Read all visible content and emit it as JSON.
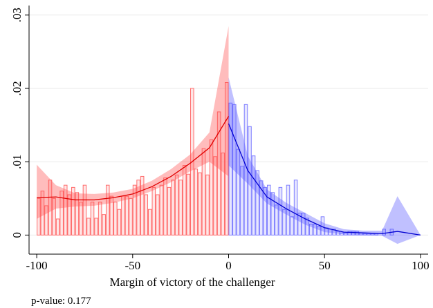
{
  "chart_data": {
    "type": "density",
    "xlabel": "Margin of victory of the challenger",
    "note": "p-value: 0.177",
    "xlim": [
      -104,
      104
    ],
    "ylim": [
      -0.0026,
      0.0313
    ],
    "xticks": [
      -100,
      -50,
      0,
      50,
      100
    ],
    "yticks": [
      {
        "value": 0,
        "label": "0"
      },
      {
        "value": 0.01,
        "label": ".01"
      },
      {
        "value": 0.02,
        "label": ".02"
      },
      {
        "value": 0.03,
        "label": ".03"
      }
    ],
    "grid": true,
    "histograms": [
      {
        "color": "#ff6b6b",
        "fill": "#ffd6d6",
        "bins": [
          -100,
          -98,
          -96,
          -94,
          -92,
          -90,
          -88,
          -86,
          -84,
          -82,
          -80,
          -78,
          -76,
          -74,
          -72,
          -70,
          -68,
          -66,
          -64,
          -62,
          -60,
          -58,
          -56,
          -54,
          -52,
          -50,
          -48,
          -46,
          -44,
          -42,
          -40,
          -38,
          -36,
          -34,
          -32,
          -30,
          -28,
          -26,
          -24,
          -22,
          -20,
          -18,
          -16,
          -14,
          -12,
          -10,
          -8,
          -6,
          -4,
          -2,
          0
        ],
        "values": [
          0.005,
          0.006,
          0.004,
          0.0075,
          0.005,
          0.0022,
          0.006,
          0.0068,
          0.0055,
          0.0065,
          0.0058,
          0.0045,
          0.0068,
          0.0023,
          0.0045,
          0.0023,
          0.0045,
          0.0028,
          0.0068,
          0.0053,
          0.0045,
          0.0035,
          0.0053,
          0.0053,
          0.005,
          0.0068,
          0.0075,
          0.008,
          0.0055,
          0.0035,
          0.0065,
          0.0055,
          0.0068,
          0.0078,
          0.0065,
          0.0075,
          0.0082,
          0.0075,
          0.0095,
          0.0083,
          0.02,
          0.009,
          0.0085,
          0.0118,
          0.0082,
          0.013,
          0.0107,
          0.0168,
          0.0112,
          0.0208
        ]
      },
      {
        "color": "#7f7fff",
        "fill": "#d6d6ff",
        "bins": [
          0,
          2,
          4,
          6,
          8,
          10,
          12,
          14,
          16,
          18,
          20,
          22,
          24,
          26,
          28,
          30,
          32,
          34,
          36,
          38,
          40,
          42,
          44,
          46,
          48,
          50,
          52,
          54,
          56,
          58,
          60,
          62,
          64,
          66,
          68,
          70,
          72,
          74,
          76,
          78,
          80,
          82,
          84,
          86,
          88,
          90,
          92,
          94,
          96,
          98,
          100
        ],
        "values": [
          0.018,
          0.0178,
          0.0117,
          0.0094,
          0.0178,
          0.0148,
          0.0108,
          0.0088,
          0.0074,
          0.0065,
          0.0068,
          0.0058,
          0.0041,
          0.0065,
          0.0035,
          0.0068,
          0.0025,
          0.0075,
          0.003,
          0.003,
          0.0023,
          0.0015,
          0.0015,
          0.0012,
          0.0025,
          0.001,
          0.0008,
          0.0008,
          0.0005,
          0.0003,
          0.0003,
          0.0005,
          0.0005,
          0.0005,
          0.0003,
          0.0002,
          0.0002,
          0.0002,
          0.0002,
          0,
          0.0008,
          0,
          0.0008,
          0,
          0,
          0,
          0,
          0,
          0,
          0
        ]
      }
    ],
    "fits": [
      {
        "color": "#e00000",
        "band": "rgba(255,80,80,0.38)",
        "x": [
          -100,
          -90,
          -80,
          -70,
          -60,
          -50,
          -40,
          -30,
          -20,
          -10,
          0
        ],
        "values": [
          0.0051,
          0.0052,
          0.0048,
          0.0048,
          0.0051,
          0.0056,
          0.0066,
          0.008,
          0.0098,
          0.0119,
          0.0162
        ],
        "lower": [
          0.0022,
          0.0036,
          0.0039,
          0.004,
          0.0044,
          0.005,
          0.006,
          0.0072,
          0.0087,
          0.01,
          0.008
        ],
        "upper": [
          0.0096,
          0.0068,
          0.0057,
          0.0056,
          0.0058,
          0.0063,
          0.0074,
          0.009,
          0.011,
          0.014,
          0.0285
        ]
      },
      {
        "color": "#0000d0",
        "band": "rgba(90,90,255,0.38)",
        "x": [
          0,
          10,
          20,
          30,
          40,
          50,
          60,
          70,
          80,
          88,
          100
        ],
        "values": [
          0.0152,
          0.0088,
          0.0052,
          0.0036,
          0.0022,
          0.001,
          0.0004,
          0.0003,
          0.0002,
          0.0005,
          0
        ],
        "lower": [
          0.0095,
          0.007,
          0.0043,
          0.0028,
          0.0014,
          0.0004,
          0.0001,
          0,
          -0.0001,
          -0.0012,
          0
        ],
        "upper": [
          0.0215,
          0.0108,
          0.0062,
          0.0044,
          0.003,
          0.0016,
          0.0008,
          0.0006,
          0.0006,
          0.0053,
          0
        ]
      }
    ]
  }
}
